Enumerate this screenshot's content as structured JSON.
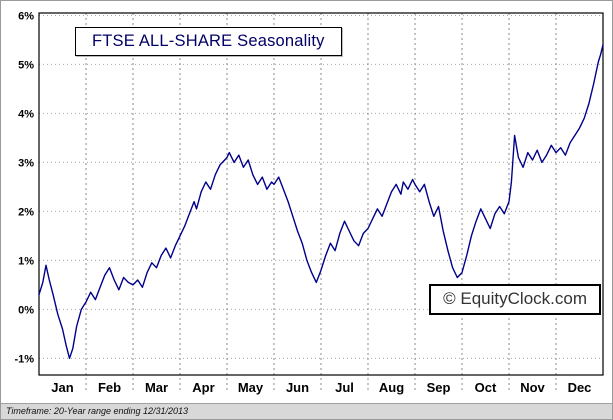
{
  "chart_data": {
    "type": "line",
    "title": "FTSE ALL-SHARE Seasonality",
    "watermark": "© EquityClock.com",
    "footer": "Timeframe: 20-Year range ending 12/31/2013",
    "x_tick_labels": [
      "Jan",
      "Feb",
      "Mar",
      "Apr",
      "May",
      "Jun",
      "Jul",
      "Aug",
      "Sep",
      "Oct",
      "Nov",
      "Dec"
    ],
    "y_ticks": [
      {
        "value": 6,
        "label": "6%"
      },
      {
        "value": 5,
        "label": "5%"
      },
      {
        "value": 4,
        "label": "4%"
      },
      {
        "value": 3,
        "label": "3%"
      },
      {
        "value": 2,
        "label": "2%"
      },
      {
        "value": 1,
        "label": "1%"
      },
      {
        "value": 0,
        "label": "0%"
      },
      {
        "value": -1,
        "label": "-1%"
      }
    ],
    "ylim": [
      -1.34,
      6.05
    ],
    "xlim_months": [
      0,
      12
    ],
    "grid": true,
    "legend": "none",
    "line_color": "#00008b",
    "series": [
      {
        "name": "FTSE ALL-SHARE Seasonality (20-year average % gain)",
        "x_months": [
          0,
          0.08,
          0.15,
          0.22,
          0.3,
          0.4,
          0.5,
          0.58,
          0.65,
          0.72,
          0.8,
          0.9,
          1.0,
          1.1,
          1.2,
          1.3,
          1.4,
          1.5,
          1.6,
          1.7,
          1.8,
          1.9,
          2.0,
          2.1,
          2.2,
          2.3,
          2.4,
          2.5,
          2.6,
          2.7,
          2.8,
          2.9,
          3.0,
          3.1,
          3.2,
          3.3,
          3.35,
          3.45,
          3.55,
          3.65,
          3.75,
          3.85,
          3.95,
          4.0,
          4.05,
          4.15,
          4.25,
          4.35,
          4.45,
          4.55,
          4.65,
          4.75,
          4.85,
          4.95,
          5.0,
          5.1,
          5.2,
          5.3,
          5.4,
          5.5,
          5.6,
          5.7,
          5.8,
          5.9,
          6.0,
          6.1,
          6.2,
          6.3,
          6.4,
          6.5,
          6.6,
          6.7,
          6.8,
          6.9,
          7.0,
          7.1,
          7.2,
          7.3,
          7.4,
          7.5,
          7.6,
          7.7,
          7.75,
          7.85,
          7.95,
          8.0,
          8.1,
          8.2,
          8.3,
          8.4,
          8.5,
          8.6,
          8.7,
          8.8,
          8.9,
          9.0,
          9.1,
          9.2,
          9.3,
          9.4,
          9.5,
          9.6,
          9.7,
          9.8,
          9.9,
          10.0,
          10.05,
          10.12,
          10.2,
          10.3,
          10.4,
          10.5,
          10.6,
          10.7,
          10.8,
          10.9,
          11.0,
          11.1,
          11.2,
          11.3,
          11.4,
          11.5,
          11.6,
          11.7,
          11.8,
          11.9,
          11.95,
          12.0
        ],
        "values": [
          0.3,
          0.55,
          0.9,
          0.6,
          0.3,
          -0.1,
          -0.4,
          -0.75,
          -1.0,
          -0.8,
          -0.35,
          0.0,
          0.15,
          0.35,
          0.2,
          0.45,
          0.7,
          0.85,
          0.6,
          0.4,
          0.65,
          0.55,
          0.5,
          0.6,
          0.45,
          0.75,
          0.95,
          0.85,
          1.1,
          1.25,
          1.05,
          1.3,
          1.5,
          1.7,
          1.95,
          2.2,
          2.05,
          2.4,
          2.6,
          2.45,
          2.75,
          2.95,
          3.05,
          3.1,
          3.2,
          3.0,
          3.15,
          2.9,
          3.05,
          2.75,
          2.55,
          2.7,
          2.45,
          2.6,
          2.55,
          2.7,
          2.45,
          2.2,
          1.9,
          1.6,
          1.35,
          1.0,
          0.75,
          0.55,
          0.8,
          1.1,
          1.35,
          1.2,
          1.55,
          1.8,
          1.6,
          1.4,
          1.3,
          1.55,
          1.65,
          1.85,
          2.05,
          1.9,
          2.15,
          2.4,
          2.55,
          2.35,
          2.6,
          2.45,
          2.65,
          2.55,
          2.4,
          2.55,
          2.2,
          1.9,
          2.1,
          1.6,
          1.2,
          0.85,
          0.65,
          0.75,
          1.1,
          1.5,
          1.8,
          2.05,
          1.85,
          1.65,
          1.95,
          2.1,
          1.95,
          2.2,
          2.6,
          3.55,
          3.1,
          2.9,
          3.2,
          3.05,
          3.25,
          3.0,
          3.15,
          3.35,
          3.2,
          3.3,
          3.15,
          3.4,
          3.55,
          3.7,
          3.9,
          4.2,
          4.6,
          5.05,
          5.2,
          5.4
        ]
      }
    ]
  }
}
